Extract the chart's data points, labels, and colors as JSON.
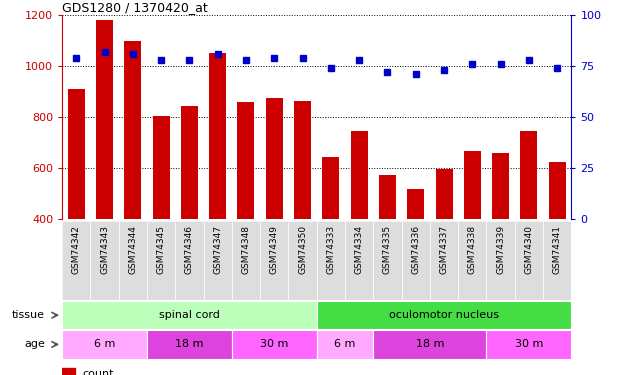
{
  "title": "GDS1280 / 1370420_at",
  "samples": [
    "GSM74342",
    "GSM74343",
    "GSM74344",
    "GSM74345",
    "GSM74346",
    "GSM74347",
    "GSM74348",
    "GSM74349",
    "GSM74350",
    "GSM74333",
    "GSM74334",
    "GSM74335",
    "GSM74336",
    "GSM74337",
    "GSM74338",
    "GSM74339",
    "GSM74340",
    "GSM74341"
  ],
  "counts": [
    910,
    1180,
    1100,
    805,
    845,
    1050,
    858,
    875,
    862,
    645,
    745,
    575,
    520,
    598,
    668,
    660,
    745,
    625
  ],
  "percentile_ranks": [
    79,
    82,
    81,
    78,
    78,
    81,
    78,
    79,
    79,
    74,
    78,
    72,
    71,
    73,
    76,
    76,
    78,
    74
  ],
  "ymin": 400,
  "ymax": 1200,
  "y2min": 0,
  "y2max": 100,
  "yticks": [
    400,
    600,
    800,
    1000,
    1200
  ],
  "y2ticks": [
    0,
    25,
    50,
    75,
    100
  ],
  "bar_color": "#cc0000",
  "dot_color": "#0000cc",
  "tissue_labels": [
    {
      "label": "spinal cord",
      "start": 0,
      "end": 9,
      "color": "#bbffbb"
    },
    {
      "label": "oculomotor nucleus",
      "start": 9,
      "end": 18,
      "color": "#44dd44"
    }
  ],
  "age_groups": [
    {
      "label": "6 m",
      "start": 0,
      "end": 3,
      "color": "#ffaaff"
    },
    {
      "label": "18 m",
      "start": 3,
      "end": 6,
      "color": "#dd44dd"
    },
    {
      "label": "30 m",
      "start": 6,
      "end": 9,
      "color": "#ff66ff"
    },
    {
      "label": "6 m",
      "start": 9,
      "end": 11,
      "color": "#ffaaff"
    },
    {
      "label": "18 m",
      "start": 11,
      "end": 15,
      "color": "#dd44dd"
    },
    {
      "label": "30 m",
      "start": 15,
      "end": 18,
      "color": "#ff66ff"
    }
  ],
  "left_label_color": "#888888",
  "xlabel_color": "#cc0000",
  "ylabel_color": "#0000cc",
  "xticklabel_bg": "#cccccc"
}
